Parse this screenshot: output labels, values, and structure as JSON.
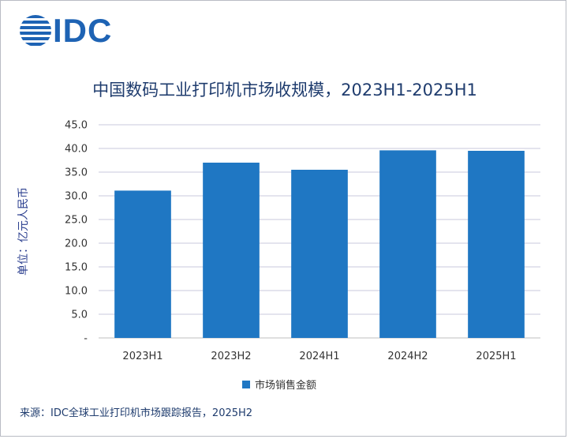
{
  "brand": {
    "logo_text": "IDC",
    "accent": "#1e63b4"
  },
  "chart_data": {
    "type": "bar",
    "title": "中国数码工业打印机市场收规模，2023H1-2025H1",
    "ylabel": "单位：亿元人民币",
    "xlabel": "",
    "categories": [
      "2023H1",
      "2023H2",
      "2024H1",
      "2024H2",
      "2025H1"
    ],
    "series": [
      {
        "name": "市场销售金额",
        "values": [
          31.1,
          37.0,
          35.5,
          39.6,
          39.5
        ],
        "color": "#1f77c3"
      }
    ],
    "ylim": [
      0,
      45
    ],
    "yticks": [
      "-",
      "5.0",
      "10.0",
      "15.0",
      "20.0",
      "25.0",
      "30.0",
      "35.0",
      "40.0",
      "45.0"
    ],
    "grid": true,
    "legend_position": "bottom"
  },
  "source": "来源：IDC全球工业打印机市场跟踪报告，2025H2"
}
